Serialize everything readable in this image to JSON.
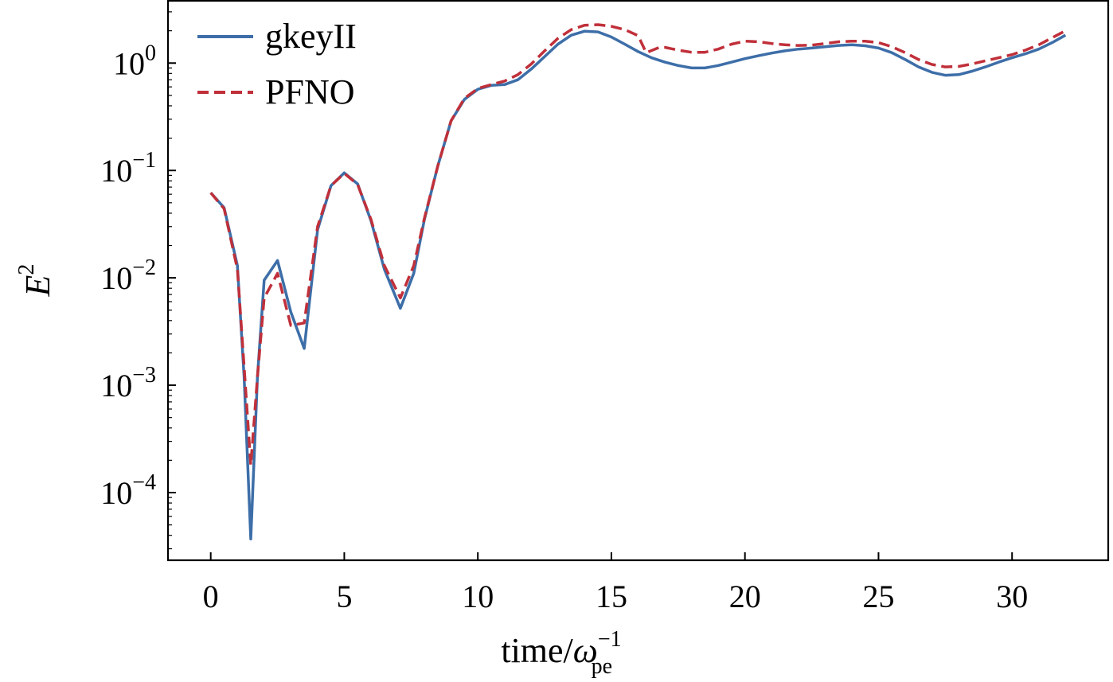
{
  "chart_data": {
    "type": "line",
    "xlabel": {
      "base": "time/",
      "symbol": "ω",
      "sub": "pe",
      "sup": "−1"
    },
    "ylabel": {
      "base": "E",
      "sup": "2"
    },
    "xlim": [
      -1.6,
      33.6
    ],
    "ylim_log10": [
      -4.63,
      0.58
    ],
    "yscale": "log",
    "grid": false,
    "legend_position": "top-left",
    "x_ticks": [
      {
        "value": 0,
        "label": "0"
      },
      {
        "value": 5,
        "label": "5"
      },
      {
        "value": 10,
        "label": "10"
      },
      {
        "value": 15,
        "label": "15"
      },
      {
        "value": 20,
        "label": "20"
      },
      {
        "value": 25,
        "label": "25"
      },
      {
        "value": 30,
        "label": "30"
      }
    ],
    "y_ticks": [
      {
        "log10": 0,
        "base": "10",
        "exp": "0"
      },
      {
        "log10": -1,
        "base": "10",
        "exp": "−1"
      },
      {
        "log10": -2,
        "base": "10",
        "exp": "−2"
      },
      {
        "log10": -3,
        "base": "10",
        "exp": "−3"
      },
      {
        "log10": -4,
        "base": "10",
        "exp": "−4"
      }
    ],
    "series": [
      {
        "name": "gkeyII",
        "color": "#3d6ea8",
        "dash": "solid",
        "points": [
          [
            0,
            0.062
          ],
          [
            0.5,
            0.045
          ],
          [
            1.0,
            0.013
          ],
          [
            1.25,
            0.0012
          ],
          [
            1.5,
            3.7e-05
          ],
          [
            1.75,
            0.0012
          ],
          [
            2.0,
            0.0095
          ],
          [
            2.5,
            0.0145
          ],
          [
            3.0,
            0.0048
          ],
          [
            3.5,
            0.0022
          ],
          [
            4.0,
            0.028
          ],
          [
            4.5,
            0.072
          ],
          [
            5.0,
            0.095
          ],
          [
            5.5,
            0.075
          ],
          [
            6.0,
            0.034
          ],
          [
            6.5,
            0.012
          ],
          [
            7.1,
            0.0052
          ],
          [
            7.6,
            0.011
          ],
          [
            8.0,
            0.035
          ],
          [
            8.5,
            0.11
          ],
          [
            9.0,
            0.29
          ],
          [
            9.5,
            0.46
          ],
          [
            10.0,
            0.57
          ],
          [
            10.5,
            0.62
          ],
          [
            11.0,
            0.63
          ],
          [
            11.5,
            0.7
          ],
          [
            12.0,
            0.88
          ],
          [
            12.5,
            1.15
          ],
          [
            13.0,
            1.5
          ],
          [
            13.5,
            1.82
          ],
          [
            14.0,
            1.98
          ],
          [
            14.5,
            1.95
          ],
          [
            15.0,
            1.75
          ],
          [
            15.5,
            1.5
          ],
          [
            16.0,
            1.28
          ],
          [
            16.5,
            1.12
          ],
          [
            17.0,
            1.02
          ],
          [
            17.5,
            0.95
          ],
          [
            18.0,
            0.9
          ],
          [
            18.5,
            0.9
          ],
          [
            19.0,
            0.95
          ],
          [
            19.5,
            1.02
          ],
          [
            20.0,
            1.1
          ],
          [
            20.5,
            1.17
          ],
          [
            21.0,
            1.24
          ],
          [
            21.5,
            1.3
          ],
          [
            22.0,
            1.35
          ],
          [
            22.5,
            1.38
          ],
          [
            23.0,
            1.42
          ],
          [
            23.5,
            1.46
          ],
          [
            24.0,
            1.48
          ],
          [
            24.5,
            1.45
          ],
          [
            25.0,
            1.38
          ],
          [
            25.5,
            1.25
          ],
          [
            26.0,
            1.08
          ],
          [
            26.5,
            0.92
          ],
          [
            27.0,
            0.82
          ],
          [
            27.5,
            0.77
          ],
          [
            28.0,
            0.78
          ],
          [
            28.5,
            0.84
          ],
          [
            29.0,
            0.92
          ],
          [
            29.5,
            1.02
          ],
          [
            30.0,
            1.12
          ],
          [
            30.5,
            1.22
          ],
          [
            31.0,
            1.35
          ],
          [
            31.5,
            1.55
          ],
          [
            32.0,
            1.82
          ]
        ]
      },
      {
        "name": "PFNO",
        "color": "#c0303a",
        "dash": "dashed",
        "points": [
          [
            0,
            0.062
          ],
          [
            0.5,
            0.044
          ],
          [
            1.0,
            0.012
          ],
          [
            1.25,
            0.0015
          ],
          [
            1.5,
            0.00018
          ],
          [
            1.75,
            0.0012
          ],
          [
            2.0,
            0.0065
          ],
          [
            2.5,
            0.011
          ],
          [
            3.0,
            0.0036
          ],
          [
            3.5,
            0.0038
          ],
          [
            4.0,
            0.03
          ],
          [
            4.5,
            0.072
          ],
          [
            5.0,
            0.094
          ],
          [
            5.5,
            0.074
          ],
          [
            6.0,
            0.035
          ],
          [
            6.5,
            0.013
          ],
          [
            7.1,
            0.0065
          ],
          [
            7.6,
            0.013
          ],
          [
            8.0,
            0.036
          ],
          [
            8.5,
            0.11
          ],
          [
            9.0,
            0.29
          ],
          [
            9.5,
            0.47
          ],
          [
            10.0,
            0.58
          ],
          [
            10.5,
            0.63
          ],
          [
            11.0,
            0.68
          ],
          [
            11.5,
            0.78
          ],
          [
            12.0,
            0.98
          ],
          [
            12.5,
            1.3
          ],
          [
            13.0,
            1.7
          ],
          [
            13.5,
            2.05
          ],
          [
            14.0,
            2.25
          ],
          [
            14.5,
            2.28
          ],
          [
            15.0,
            2.2
          ],
          [
            15.5,
            2.05
          ],
          [
            16.0,
            1.8
          ],
          [
            16.3,
            1.25
          ],
          [
            16.8,
            1.4
          ],
          [
            17.0,
            1.4
          ],
          [
            17.5,
            1.32
          ],
          [
            18.0,
            1.26
          ],
          [
            18.5,
            1.26
          ],
          [
            19.0,
            1.35
          ],
          [
            19.5,
            1.5
          ],
          [
            20.0,
            1.6
          ],
          [
            20.5,
            1.58
          ],
          [
            21.0,
            1.52
          ],
          [
            21.5,
            1.48
          ],
          [
            22.0,
            1.46
          ],
          [
            22.5,
            1.47
          ],
          [
            23.0,
            1.52
          ],
          [
            23.5,
            1.58
          ],
          [
            24.0,
            1.6
          ],
          [
            24.5,
            1.6
          ],
          [
            25.0,
            1.55
          ],
          [
            25.5,
            1.42
          ],
          [
            26.0,
            1.25
          ],
          [
            26.5,
            1.08
          ],
          [
            27.0,
            0.97
          ],
          [
            27.5,
            0.92
          ],
          [
            28.0,
            0.93
          ],
          [
            28.5,
            0.98
          ],
          [
            29.0,
            1.05
          ],
          [
            29.5,
            1.12
          ],
          [
            30.0,
            1.2
          ],
          [
            30.5,
            1.32
          ],
          [
            31.0,
            1.48
          ],
          [
            31.5,
            1.72
          ],
          [
            32.0,
            2.0
          ]
        ]
      }
    ]
  }
}
